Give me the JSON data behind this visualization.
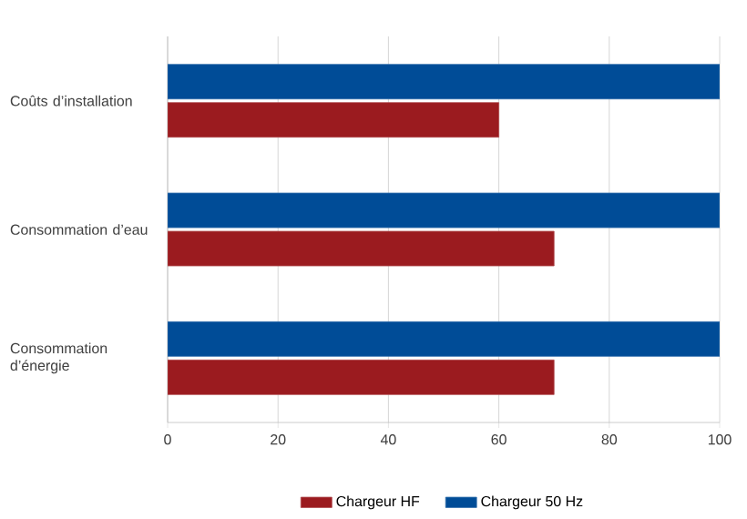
{
  "chart_data": {
    "type": "bar",
    "orientation": "horizontal",
    "categories": [
      "Coûts d’installation",
      "Consommation d’eau",
      "Consommation d’énergie"
    ],
    "series": [
      {
        "name": "Chargeur HF",
        "color": "#9b1b1f",
        "values": [
          60,
          70,
          70
        ]
      },
      {
        "name": "Chargeur 50 Hz",
        "color": "#004c97",
        "values": [
          100,
          100,
          100
        ]
      }
    ],
    "xlim": [
      0,
      100
    ],
    "xticks": [
      0,
      20,
      40,
      60,
      80,
      100
    ],
    "grid": "x",
    "legend": "bottom"
  }
}
